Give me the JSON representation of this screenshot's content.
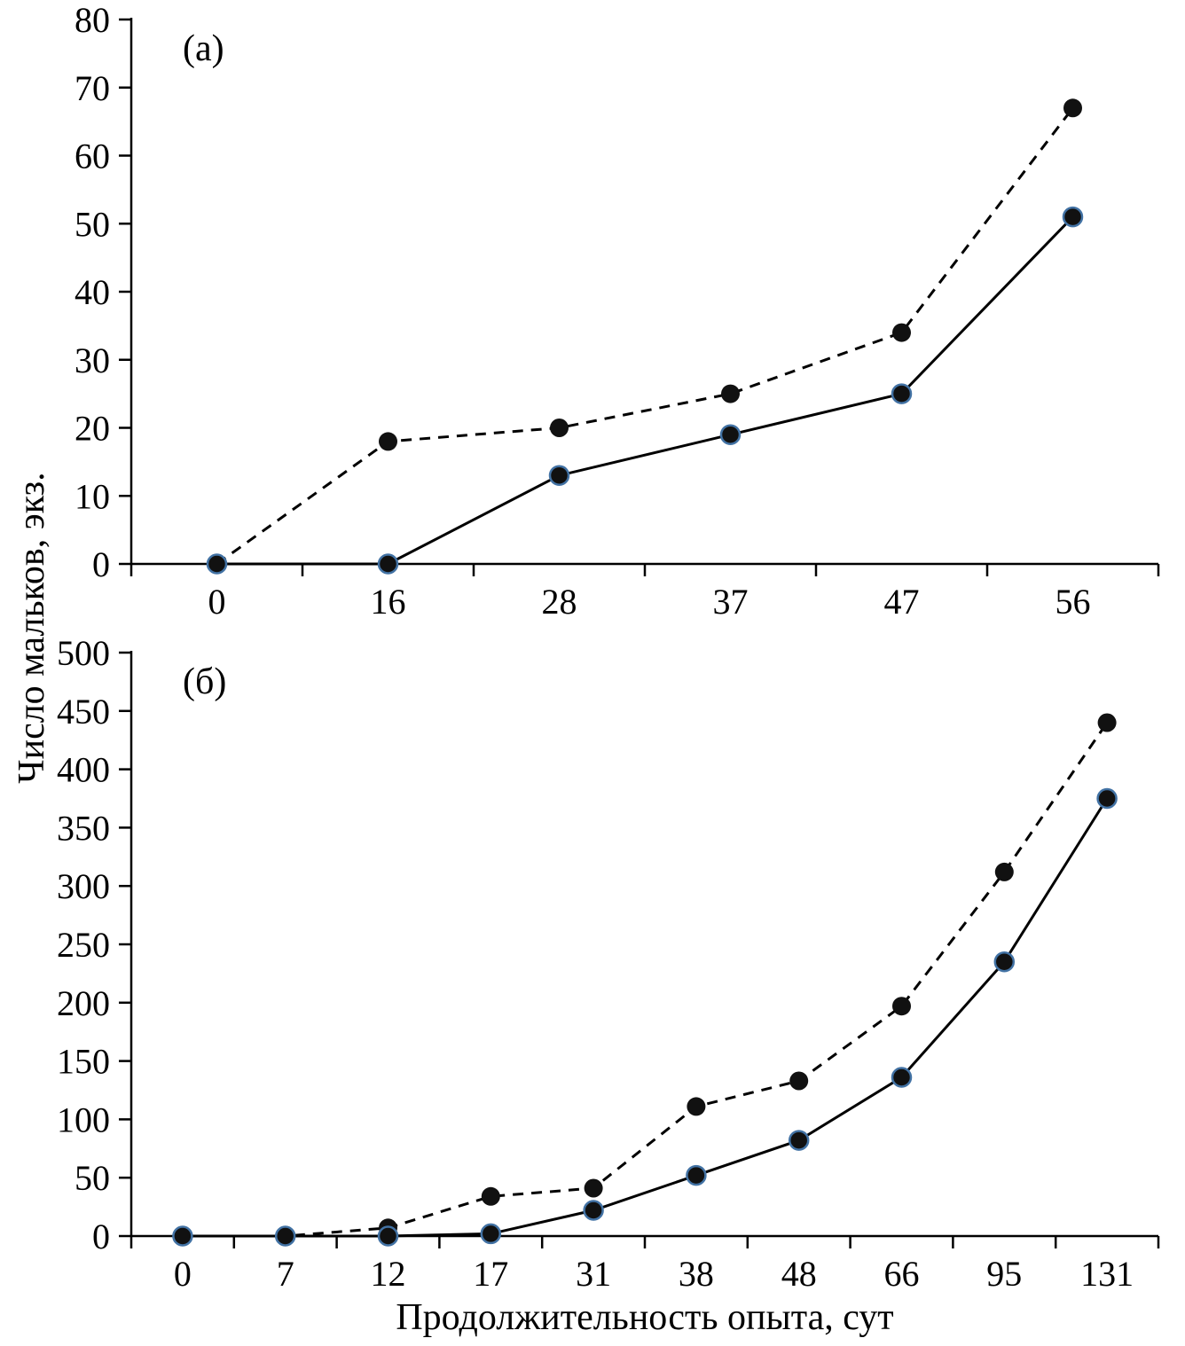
{
  "figure": {
    "ylabel": "Число мальков, экз.",
    "xlabel": "Продолжительность опыта, сут"
  },
  "colors": {
    "line": "#000000",
    "marker_fill": "#111111",
    "marker_ring": "#4272a4"
  },
  "chart_data": [
    {
      "type": "line",
      "panel_label": "(а)",
      "xlabel": "Продолжительность опыта, сут",
      "ylabel": "Число мальков, экз.",
      "categories": [
        "0",
        "16",
        "28",
        "37",
        "47",
        "56"
      ],
      "ylim": [
        0,
        80
      ],
      "ytick_step": 10,
      "grid": false,
      "legend": "none",
      "series": [
        {
          "name": "dashed-filled-circles",
          "line": "dashed",
          "marker": "filled",
          "values": [
            0,
            18,
            20,
            25,
            34,
            67
          ]
        },
        {
          "name": "solid-ringed-circles",
          "line": "solid",
          "marker": "ringed",
          "values": [
            0,
            0,
            13,
            19,
            25,
            51
          ]
        }
      ]
    },
    {
      "type": "line",
      "panel_label": "(б)",
      "xlabel": "Продолжительность опыта, сут",
      "ylabel": "Число мальков, экз.",
      "categories": [
        "0",
        "7",
        "12",
        "17",
        "31",
        "38",
        "48",
        "66",
        "95",
        "131"
      ],
      "ylim": [
        0,
        500
      ],
      "ytick_step": 50,
      "grid": false,
      "legend": "none",
      "series": [
        {
          "name": "dashed-filled-circles",
          "line": "dashed",
          "marker": "filled",
          "values": [
            0,
            0,
            7,
            34,
            41,
            111,
            133,
            197,
            312,
            440
          ]
        },
        {
          "name": "solid-ringed-circles",
          "line": "solid",
          "marker": "ringed",
          "values": [
            0,
            0,
            0,
            2,
            22,
            52,
            82,
            136,
            235,
            375
          ]
        }
      ]
    }
  ]
}
